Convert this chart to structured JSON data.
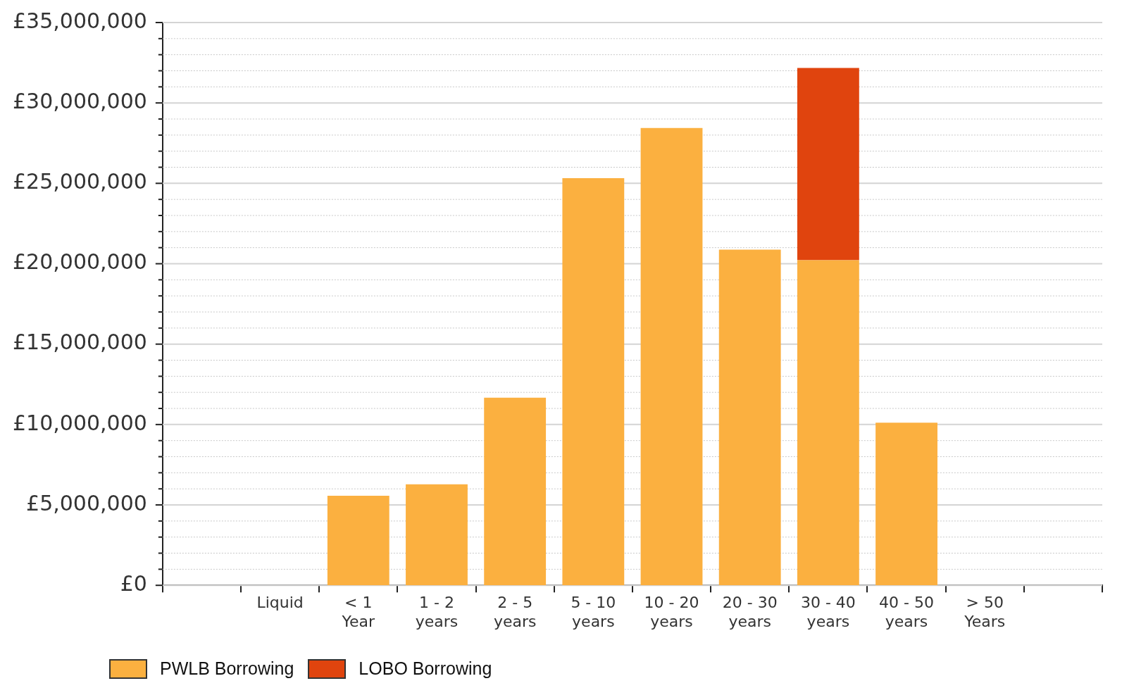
{
  "chart_data": {
    "type": "bar",
    "stacked": true,
    "categories": [
      "Liquid",
      "< 1 Year",
      "1 - 2 years",
      "2 - 5 years",
      "5 - 10 years",
      "10 - 20 years",
      "20 - 30 years",
      "30 - 40 years",
      "40 - 50 years",
      "> 50 Years"
    ],
    "series": [
      {
        "name": "PWLB Borrowing",
        "color": "#fbb040",
        "values": [
          0,
          5570000,
          6280000,
          11670000,
          25320000,
          28440000,
          20880000,
          20220000,
          10110000,
          0
        ]
      },
      {
        "name": "LOBO Borrowing",
        "color": "#e0440e",
        "values": [
          0,
          0,
          0,
          0,
          0,
          0,
          0,
          11950000,
          0,
          0
        ]
      }
    ],
    "ylim": [
      0,
      35000000
    ],
    "yticks": [
      {
        "value": 0,
        "label": "£0"
      },
      {
        "value": 1000000,
        "label": null
      },
      {
        "value": 2000000,
        "label": null
      },
      {
        "value": 3000000,
        "label": null
      },
      {
        "value": 4000000,
        "label": null
      },
      {
        "value": 5000000,
        "label": "£5,000,000"
      },
      {
        "value": 6000000,
        "label": null
      },
      {
        "value": 7000000,
        "label": null
      },
      {
        "value": 8000000,
        "label": null
      },
      {
        "value": 9000000,
        "label": null
      },
      {
        "value": 10000000,
        "label": "£10,000,000"
      },
      {
        "value": 11000000,
        "label": null
      },
      {
        "value": 12000000,
        "label": null
      },
      {
        "value": 13000000,
        "label": null
      },
      {
        "value": 14000000,
        "label": null
      },
      {
        "value": 15000000,
        "label": "£15,000,000"
      },
      {
        "value": 16000000,
        "label": null
      },
      {
        "value": 17000000,
        "label": null
      },
      {
        "value": 18000000,
        "label": null
      },
      {
        "value": 19000000,
        "label": null
      },
      {
        "value": 20000000,
        "label": "£20,000,000"
      },
      {
        "value": 21000000,
        "label": null
      },
      {
        "value": 22000000,
        "label": null
      },
      {
        "value": 23000000,
        "label": null
      },
      {
        "value": 24000000,
        "label": null
      },
      {
        "value": 25000000,
        "label": "£25,000,000"
      },
      {
        "value": 26000000,
        "label": null
      },
      {
        "value": 27000000,
        "label": null
      },
      {
        "value": 28000000,
        "label": null
      },
      {
        "value": 29000000,
        "label": null
      },
      {
        "value": 30000000,
        "label": "£30,000,000"
      },
      {
        "value": 31000000,
        "label": null
      },
      {
        "value": 32000000,
        "label": null
      },
      {
        "value": 33000000,
        "label": null
      },
      {
        "value": 34000000,
        "label": null
      },
      {
        "value": 35000000,
        "label": "£35,000,000"
      }
    ],
    "grid": "y",
    "legend": "bottom left"
  }
}
